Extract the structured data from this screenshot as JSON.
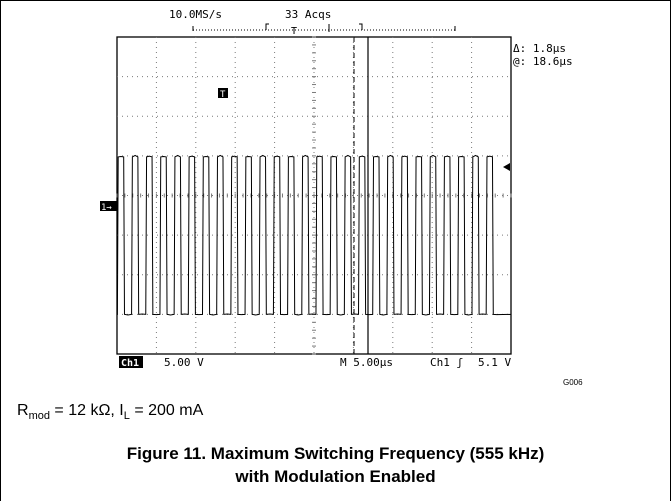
{
  "scope": {
    "sample_rate": "10.0MS/s",
    "acqs": "33 Acqs",
    "trigger_marker": "T",
    "cursor_readout": {
      "delta": "Δ: 1.8μs",
      "at": "@: 18.6μs"
    },
    "channel_marker": "1→",
    "bottom": {
      "ch": "Ch1",
      "volts": "5.00 V",
      "timebase": "M 5.00μs",
      "trig": "Ch1 ʃ",
      "level": "5.1 V"
    }
  },
  "figure_id": "G006",
  "conditions": {
    "r_main": "R",
    "r_sub": "mod",
    "r_val": " = 12 kΩ, I",
    "i_sub": "L",
    "i_val": " = 200 mA"
  },
  "caption": {
    "line1": "Figure 11. Maximum Switching Frequency (555 kHz)",
    "line2": "with Modulation Enabled"
  },
  "chart_data": {
    "type": "line",
    "title": "",
    "xlabel": "",
    "ylabel": "",
    "x_units": "μs",
    "y_units": "V",
    "time_per_div_us": 5.0,
    "volts_per_div": 5.0,
    "xlim": [
      0,
      50
    ],
    "ylim": [
      -5,
      35
    ],
    "frequency_khz": 555,
    "period_us": 1.8,
    "high_level_v": 20,
    "low_level_v": 0,
    "duty_cycle": 0.5,
    "cursor_delta_us": 1.8,
    "cursor_position_us": 18.6,
    "series": [
      {
        "name": "Ch1",
        "pulses_visible": 27
      }
    ]
  },
  "colors": {
    "trace": "#000000",
    "grid": "#7a7a7a",
    "background": "#ffffff"
  }
}
